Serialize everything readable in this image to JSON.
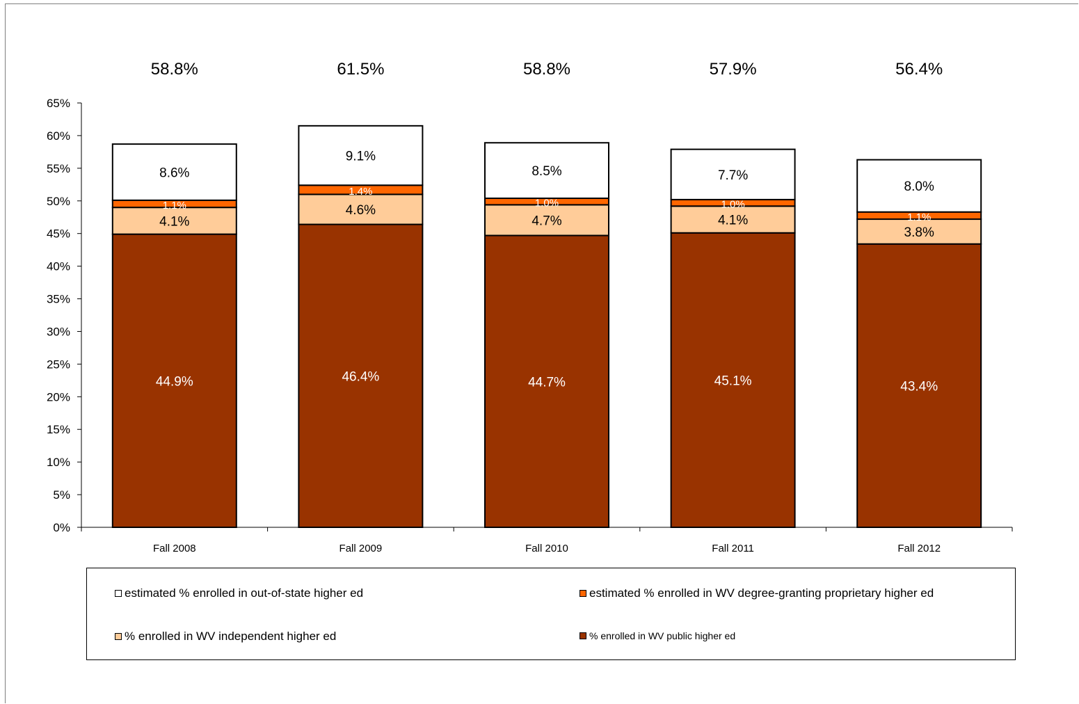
{
  "chart_data": {
    "type": "bar",
    "stacked": true,
    "categories": [
      "Fall 2008",
      "Fall 2009",
      "Fall 2010",
      "Fall 2011",
      "Fall 2012"
    ],
    "totals": [
      "58.8%",
      "61.5%",
      "58.8%",
      "57.9%",
      "56.4%"
    ],
    "series": [
      {
        "name": "% enrolled in WV public higher ed",
        "color": "#993300",
        "label_color": "#ffffff",
        "values": [
          44.9,
          46.4,
          44.7,
          45.1,
          43.4
        ],
        "labels": [
          "44.9%",
          "46.4%",
          "44.7%",
          "45.1%",
          "43.4%"
        ]
      },
      {
        "name": "% enrolled in WV independent higher ed",
        "color": "#ffcc99",
        "label_color": "#000000",
        "values": [
          4.1,
          4.6,
          4.7,
          4.1,
          3.8
        ],
        "labels": [
          "4.1%",
          "4.6%",
          "4.7%",
          "4.1%",
          "3.8%"
        ]
      },
      {
        "name": "estimated % enrolled in WV degree-granting proprietary higher ed",
        "color": "#ff6600",
        "label_color": "#ffffff",
        "values": [
          1.1,
          1.4,
          1.0,
          1.0,
          1.1
        ],
        "labels": [
          "1.1%",
          "1.4%",
          "1.0%",
          "1.0%",
          "1.1%"
        ]
      },
      {
        "name": "estimated % enrolled in out-of-state higher ed",
        "color": "#ffffff",
        "label_color": "#000000",
        "values": [
          8.6,
          9.1,
          8.5,
          7.7,
          8.0
        ],
        "labels": [
          "8.6%",
          "9.1%",
          "8.5%",
          "7.7%",
          "8.0%"
        ]
      }
    ],
    "yticks": [
      "0%",
      "5%",
      "10%",
      "15%",
      "20%",
      "25%",
      "30%",
      "35%",
      "40%",
      "45%",
      "50%",
      "55%",
      "60%",
      "65%"
    ],
    "ylim": [
      0,
      65
    ],
    "grid": false,
    "legend_position": "bottom"
  }
}
